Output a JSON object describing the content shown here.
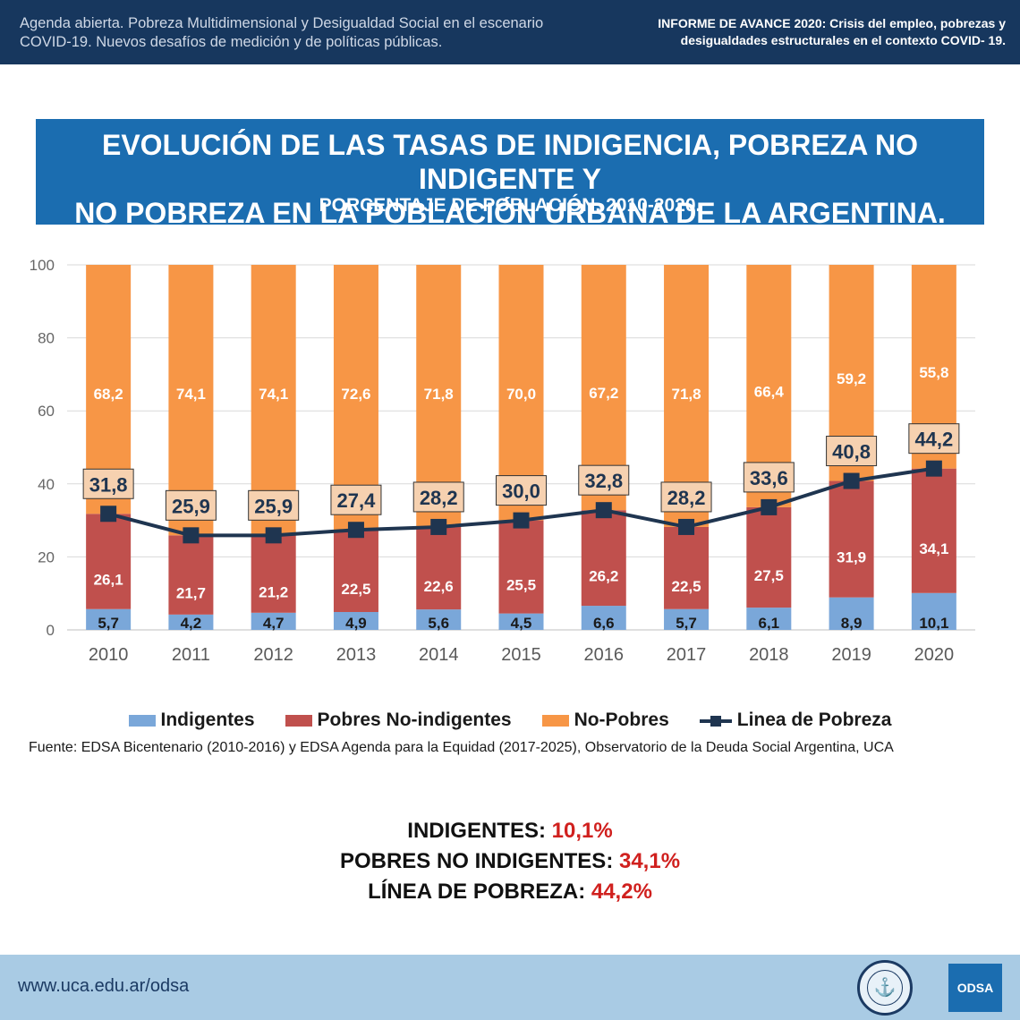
{
  "header": {
    "left_text": "Agenda abierta. Pobreza Multidimensional y Desigualdad Social en el escenario COVID-19. Nuevos desafíos de medición y de políticas públicas.",
    "right_text": "INFORME DE AVANCE 2020: Crisis del empleo, pobrezas y desigualdades estructurales en el contexto COVID- 19."
  },
  "title": {
    "line1": "EVOLUCIÓN DE LAS TASAS DE INDIGENCIA, POBREZA NO INDIGENTE Y",
    "line2": "NO POBREZA EN LA POBLACIÓN URBANA DE LA ARGENTINA.",
    "subtitle": "PORCENTAJE DE POBLACIÓN. 2010-2020."
  },
  "chart_data": {
    "type": "bar",
    "stacked": true,
    "categories": [
      "2010",
      "2011",
      "2012",
      "2013",
      "2014",
      "2015",
      "2016",
      "2017",
      "2018",
      "2019",
      "2020"
    ],
    "series": [
      {
        "name": "Indigentes",
        "color": "#7aa7d9",
        "values": [
          5.7,
          4.2,
          4.7,
          4.9,
          5.6,
          4.5,
          6.6,
          5.7,
          6.1,
          8.9,
          10.1
        ],
        "labels": [
          "5,7",
          "4,2",
          "4,7",
          "4,9",
          "5,6",
          "4,5",
          "6,6",
          "5,7",
          "6,1",
          "8,9",
          "10,1"
        ]
      },
      {
        "name": "Pobres No-indigentes",
        "color": "#c0504d",
        "values": [
          26.1,
          21.7,
          21.2,
          22.5,
          22.6,
          25.5,
          26.2,
          22.5,
          27.5,
          31.9,
          34.1
        ],
        "labels": [
          "26,1",
          "21,7",
          "21,2",
          "22,5",
          "22,6",
          "25,5",
          "26,2",
          "22,5",
          "27,5",
          "31,9",
          "34,1"
        ]
      },
      {
        "name": "No-Pobres",
        "color": "#f79646",
        "values": [
          68.2,
          74.1,
          74.1,
          72.6,
          71.8,
          70.0,
          67.2,
          71.8,
          66.4,
          59.2,
          55.8
        ],
        "labels": [
          "68,2",
          "74,1",
          "74,1",
          "72,6",
          "71,8",
          "70,0",
          "67,2",
          "71,8",
          "66,4",
          "59,2",
          "55,8"
        ]
      },
      {
        "name": "Linea de Pobreza",
        "type": "line",
        "color": "#1f3550",
        "values": [
          31.8,
          25.9,
          25.9,
          27.4,
          28.2,
          30.0,
          32.8,
          28.2,
          33.6,
          40.8,
          44.2
        ],
        "labels": [
          "31,8",
          "25,9",
          "25,9",
          "27,4",
          "28,2",
          "30,0",
          "32,8",
          "28,2",
          "33,6",
          "40,8",
          "44,2"
        ]
      }
    ],
    "yticks": [
      "0",
      "20",
      "40",
      "60",
      "80",
      "100"
    ],
    "ylim": [
      0,
      100
    ],
    "legend_position": "bottom"
  },
  "source": "Fuente: EDSA Bicentenario (2010-2016) y EDSA Agenda para la Equidad (2017-2025), Observatorio de la Deuda Social Argentina, UCA",
  "summary": [
    {
      "label": "INDIGENTES: ",
      "value": "10,1%"
    },
    {
      "label": "POBRES NO INDIGENTES: ",
      "value": "34,1%"
    },
    {
      "label": "LÍNEA DE POBREZA: ",
      "value": "44,2%"
    }
  ],
  "footer": {
    "url": "www.uca.edu.ar/odsa",
    "seal_glyph": "⚓",
    "logo_text": "ODSA"
  }
}
